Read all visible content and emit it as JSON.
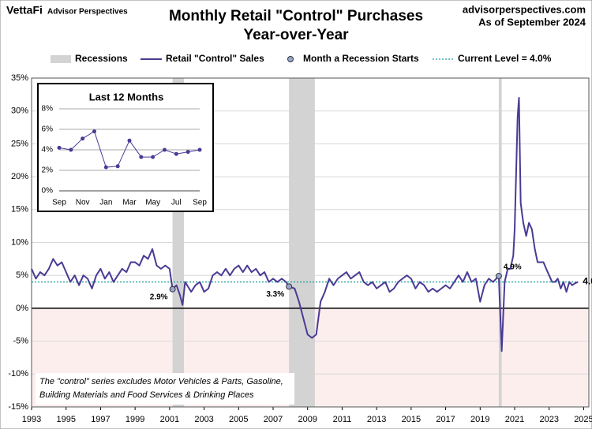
{
  "header": {
    "brand": "VettaFi",
    "partner": "Advisor Perspectives",
    "site": "advisorperspectives.com",
    "as_of": "As of September 2024"
  },
  "chart_data": [
    {
      "type": "line",
      "title": [
        "Monthly Retail \"Control\" Purchases",
        "Year-over-Year"
      ],
      "legend": [
        "Recessions",
        "Retail \"Control\" Sales",
        "Month a Recession Starts",
        "Current Level = 4.0%"
      ],
      "xlim": [
        1993,
        2025.3
      ],
      "xticks": [
        1993,
        1995,
        1997,
        1999,
        2001,
        2003,
        2005,
        2007,
        2009,
        2011,
        2013,
        2015,
        2017,
        2019,
        2021,
        2023,
        2025
      ],
      "ylim": [
        -15,
        35
      ],
      "yticks": [
        {
          "value": -15,
          "label": "-15%"
        },
        {
          "value": -10,
          "label": "-10%"
        },
        {
          "value": -5,
          "label": "-5%"
        },
        {
          "value": 0,
          "label": "0%"
        },
        {
          "value": 5,
          "label": "5%"
        },
        {
          "value": 10,
          "label": "10%"
        },
        {
          "value": 15,
          "label": "15%"
        },
        {
          "value": 20,
          "label": "20%"
        },
        {
          "value": 25,
          "label": "25%"
        },
        {
          "value": 30,
          "label": "30%"
        },
        {
          "value": 35,
          "label": "35%"
        }
      ],
      "grid": true,
      "recessions": [
        [
          2001.17,
          2001.83
        ],
        [
          2007.92,
          2009.42
        ],
        [
          2020.08,
          2020.25
        ]
      ],
      "recession_color": "#d3d3d3",
      "negative_fill": "#fdeeee",
      "series": [
        {
          "name": "Retail \"Control\" Sales",
          "color": "#4b3a94",
          "x": [
            1993.0,
            1993.25,
            1993.5,
            1993.75,
            1994.0,
            1994.25,
            1994.5,
            1994.75,
            1995.0,
            1995.25,
            1995.5,
            1995.75,
            1996.0,
            1996.25,
            1996.5,
            1996.75,
            1997.0,
            1997.25,
            1997.5,
            1997.75,
            1998.0,
            1998.25,
            1998.5,
            1998.75,
            1999.0,
            1999.25,
            1999.5,
            1999.75,
            2000.0,
            2000.25,
            2000.5,
            2000.75,
            2001.0,
            2001.17,
            2001.4,
            2001.6,
            2001.75,
            2001.9,
            2002.25,
            2002.5,
            2002.75,
            2003.0,
            2003.25,
            2003.5,
            2003.75,
            2004.0,
            2004.25,
            2004.5,
            2004.75,
            2005.0,
            2005.25,
            2005.5,
            2005.75,
            2006.0,
            2006.25,
            2006.5,
            2006.75,
            2007.0,
            2007.25,
            2007.5,
            2007.75,
            2007.92,
            2008.25,
            2008.5,
            2008.75,
            2009.0,
            2009.25,
            2009.5,
            2009.75,
            2010.0,
            2010.25,
            2010.5,
            2010.75,
            2011.0,
            2011.25,
            2011.5,
            2011.75,
            2012.0,
            2012.25,
            2012.5,
            2012.75,
            2013.0,
            2013.25,
            2013.5,
            2013.75,
            2014.0,
            2014.25,
            2014.5,
            2014.75,
            2015.0,
            2015.25,
            2015.5,
            2015.75,
            2016.0,
            2016.25,
            2016.5,
            2016.75,
            2017.0,
            2017.25,
            2017.5,
            2017.75,
            2018.0,
            2018.25,
            2018.5,
            2018.75,
            2019.0,
            2019.25,
            2019.5,
            2019.75,
            2020.08,
            2020.25,
            2020.42,
            2020.6,
            2020.75,
            2020.92,
            2021.0,
            2021.17,
            2021.25,
            2021.35,
            2021.5,
            2021.67,
            2021.83,
            2022.0,
            2022.17,
            2022.33,
            2022.5,
            2022.67,
            2022.83,
            2023.0,
            2023.17,
            2023.33,
            2023.5,
            2023.67,
            2023.83,
            2024.0,
            2024.17,
            2024.33,
            2024.5,
            2024.67
          ],
          "values": [
            6,
            4.5,
            5.5,
            5,
            6,
            7.5,
            6.5,
            7,
            5.5,
            4,
            5,
            3.5,
            5,
            4.5,
            3,
            5,
            6,
            4.5,
            5.5,
            4,
            5,
            6,
            5.5,
            7,
            7,
            6.5,
            8,
            7.5,
            9,
            6.5,
            6,
            6.5,
            6,
            2.9,
            3.5,
            2,
            0.5,
            4,
            2.5,
            3.5,
            4,
            2.5,
            3,
            5,
            5.5,
            5,
            6,
            5,
            6,
            6.5,
            5.5,
            6.5,
            5.5,
            6,
            5,
            5.5,
            4,
            4.5,
            4,
            4.5,
            4,
            3.3,
            3,
            1,
            -1.5,
            -4,
            -4.5,
            -4,
            1,
            2.5,
            4.5,
            3.5,
            4.5,
            5,
            5.5,
            4.5,
            5,
            5.5,
            4,
            3.5,
            4,
            3,
            3.5,
            4,
            2.5,
            3,
            4,
            4.5,
            5,
            4.5,
            3,
            4,
            3.5,
            2.5,
            3,
            2.5,
            3,
            3.5,
            3,
            4,
            5,
            4,
            5.5,
            4,
            4.5,
            1,
            3.5,
            4.5,
            4,
            4.9,
            -6.5,
            4,
            6,
            6,
            8,
            12,
            29,
            32,
            16,
            13,
            11,
            13,
            12,
            9,
            7,
            7,
            7,
            6,
            5,
            4,
            4,
            4.5,
            3,
            4,
            2.5,
            4,
            3.5,
            3.8,
            4.0
          ]
        }
      ],
      "recession_starts": {
        "name": "Month a Recession Starts",
        "color": "#9aa8c8",
        "x": [
          2001.17,
          2007.92,
          2020.08
        ],
        "values": [
          2.9,
          3.3,
          4.9
        ],
        "value_labels": [
          "2.9%",
          "3.3%",
          "4.9%"
        ]
      },
      "current_level": {
        "value": 4.0,
        "label": "4.0%",
        "color": "#20a0a0"
      },
      "note": [
        "The \"control\" series excludes Motor Vehicles & Parts, Gasoline,",
        "Building Materials and Food Services & Drinking Places"
      ]
    },
    {
      "type": "line",
      "title": "Last 12 Months",
      "categories": [
        "Sep",
        null,
        "Nov",
        null,
        "Jan",
        null,
        "Mar",
        null,
        "May",
        null,
        "Jul",
        null,
        "Sep"
      ],
      "ylim": [
        0,
        8
      ],
      "yticks": [
        {
          "value": 0,
          "label": "0%"
        },
        {
          "value": 2,
          "label": "2%"
        },
        {
          "value": 4,
          "label": "4%"
        },
        {
          "value": 6,
          "label": "6%"
        },
        {
          "value": 8,
          "label": "8%"
        }
      ],
      "grid": true,
      "series": [
        {
          "name": "Retail \"Control\" Sales",
          "color": "#4b3a94",
          "values": [
            4.2,
            4.0,
            5.1,
            5.8,
            2.3,
            2.4,
            4.9,
            3.3,
            3.3,
            4.0,
            3.6,
            3.8,
            4.0
          ]
        }
      ]
    }
  ]
}
